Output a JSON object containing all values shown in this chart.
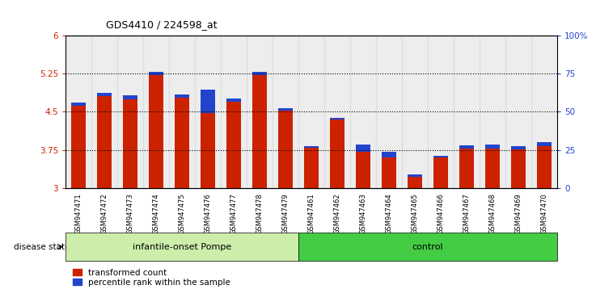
{
  "title": "GDS4410 / 224598_at",
  "samples": [
    "GSM947471",
    "GSM947472",
    "GSM947473",
    "GSM947474",
    "GSM947475",
    "GSM947476",
    "GSM947477",
    "GSM947478",
    "GSM947479",
    "GSM947461",
    "GSM947462",
    "GSM947463",
    "GSM947464",
    "GSM947465",
    "GSM947466",
    "GSM947467",
    "GSM947468",
    "GSM947469",
    "GSM947470"
  ],
  "red_values": [
    4.62,
    4.8,
    4.75,
    5.22,
    4.78,
    4.47,
    4.7,
    5.22,
    4.52,
    3.8,
    4.35,
    3.72,
    3.6,
    3.22,
    3.6,
    3.77,
    3.78,
    3.76,
    3.82
  ],
  "blue_values": [
    4.68,
    4.87,
    4.82,
    5.28,
    4.83,
    4.93,
    4.76,
    5.28,
    4.57,
    3.82,
    4.38,
    3.86,
    3.72,
    3.27,
    3.63,
    3.84,
    3.85,
    3.82,
    3.91
  ],
  "baseline": 3.0,
  "ylim": [
    3.0,
    6.0
  ],
  "yticks_left": [
    3.0,
    3.75,
    4.5,
    5.25,
    6.0
  ],
  "yticks_right": [
    0,
    25,
    50,
    75,
    100
  ],
  "ytick_labels_left": [
    "3",
    "3.75",
    "4.5",
    "5.25",
    "6"
  ],
  "ytick_labels_right": [
    "0",
    "25",
    "50",
    "75",
    "100%"
  ],
  "dotted_lines": [
    3.75,
    4.5,
    5.25
  ],
  "group1_label": "infantile-onset Pompe",
  "group2_label": "control",
  "group1_count": 9,
  "group2_count": 10,
  "disease_state_label": "disease state",
  "legend1_label": "transformed count",
  "legend2_label": "percentile rank within the sample",
  "bar_width": 0.55,
  "red_color": "#cc2200",
  "blue_color": "#2244cc",
  "col_bg_odd": "#e8e8e8",
  "col_bg_even": "#f0f0f0",
  "left_tick_color": "#cc2200",
  "right_tick_color": "#2244cc",
  "group1_bg": "#cceeaa",
  "group2_bg": "#44cc44"
}
